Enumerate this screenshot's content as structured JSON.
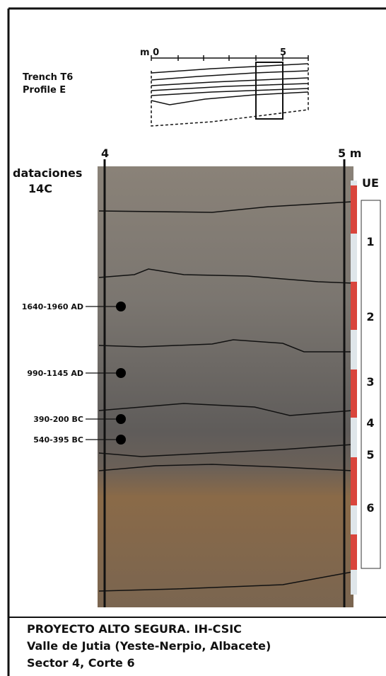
{
  "sketch": {
    "title_line1": "Trench T6",
    "title_line2": "Profile E",
    "scale_start": "m 0",
    "scale_end": "5"
  },
  "profile": {
    "left_mark": "4",
    "right_mark": "5 m",
    "dating_title_line1": "dataciones",
    "dating_title_line2": "14C",
    "ue_header": "UE",
    "dates": [
      "1640-1960 AD",
      "990-1145 AD",
      "390-200 BC",
      "540-395 BC"
    ],
    "layers": [
      "1",
      "2",
      "3",
      "4",
      "5",
      "6"
    ]
  },
  "footer": {
    "line1": "PROYECTO ALTO SEGURA. IH-CSIC",
    "line2": "Valle de Jutia (Yeste-Nerpio, Albacete)",
    "line3": "Sector 4, Corte 6"
  }
}
